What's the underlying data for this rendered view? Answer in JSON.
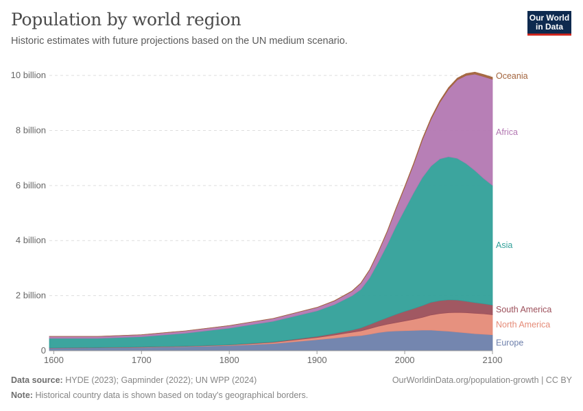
{
  "header": {
    "title": "Population by world region",
    "subtitle": "Historic estimates with future projections based on the UN medium scenario.",
    "logo_line1": "Our World",
    "logo_line2": "in Data"
  },
  "footer": {
    "source_label": "Data source:",
    "source_text": "HYDE (2023); Gapminder (2022); UN WPP (2024)",
    "note_label": "Note:",
    "note_text": "Historical country data is shown based on today's geographical borders.",
    "credit": "OurWorldinData.org/population-growth | CC BY"
  },
  "chart_data": {
    "type": "area",
    "stacked": true,
    "title": "Population by world region",
    "xlabel": "",
    "ylabel": "",
    "xlim": [
      1595,
      2100
    ],
    "ylim": [
      0,
      10.5
    ],
    "y_ticks": [
      0,
      2,
      4,
      6,
      8,
      10
    ],
    "y_tick_labels": [
      "0",
      "2 billion",
      "4 billion",
      "6 billion",
      "8 billion",
      "10 billion"
    ],
    "x_ticks": [
      1600,
      1700,
      1800,
      1900,
      2000,
      2100
    ],
    "x_tick_labels": [
      "1600",
      "1700",
      "1800",
      "1900",
      "2000",
      "2100"
    ],
    "grid": true,
    "legend": "inline-right",
    "x": [
      1595,
      1650,
      1700,
      1750,
      1800,
      1850,
      1900,
      1920,
      1940,
      1950,
      1960,
      1970,
      1980,
      1990,
      2000,
      2010,
      2020,
      2030,
      2040,
      2050,
      2060,
      2070,
      2080,
      2090,
      2100
    ],
    "series": [
      {
        "name": "Europe",
        "color": "#6d7fab",
        "values": [
          0.1,
          0.11,
          0.12,
          0.15,
          0.19,
          0.26,
          0.4,
          0.46,
          0.53,
          0.55,
          0.6,
          0.66,
          0.7,
          0.72,
          0.73,
          0.74,
          0.75,
          0.75,
          0.73,
          0.71,
          0.68,
          0.65,
          0.62,
          0.6,
          0.58
        ]
      },
      {
        "name": "North America",
        "color": "#e58b78",
        "values": [
          0.0,
          0.0,
          0.01,
          0.01,
          0.02,
          0.04,
          0.08,
          0.11,
          0.14,
          0.17,
          0.2,
          0.23,
          0.26,
          0.3,
          0.35,
          0.4,
          0.46,
          0.55,
          0.62,
          0.67,
          0.71,
          0.73,
          0.74,
          0.74,
          0.73
        ]
      },
      {
        "name": "South America",
        "color": "#9c4f5a",
        "values": [
          0.01,
          0.01,
          0.01,
          0.01,
          0.01,
          0.02,
          0.04,
          0.06,
          0.08,
          0.11,
          0.15,
          0.19,
          0.24,
          0.3,
          0.35,
          0.39,
          0.43,
          0.46,
          0.47,
          0.47,
          0.45,
          0.42,
          0.39,
          0.37,
          0.35
        ]
      },
      {
        "name": "Asia",
        "color": "#31a099",
        "values": [
          0.34,
          0.33,
          0.37,
          0.47,
          0.6,
          0.75,
          0.93,
          1.05,
          1.25,
          1.4,
          1.7,
          2.15,
          2.65,
          3.2,
          3.7,
          4.2,
          4.65,
          4.95,
          5.15,
          5.2,
          5.15,
          5.0,
          4.8,
          4.55,
          4.35
        ]
      },
      {
        "name": "Africa",
        "color": "#b378b2",
        "values": [
          0.07,
          0.07,
          0.07,
          0.08,
          0.09,
          0.1,
          0.12,
          0.13,
          0.16,
          0.22,
          0.28,
          0.36,
          0.47,
          0.63,
          0.81,
          1.03,
          1.36,
          1.7,
          2.05,
          2.45,
          2.85,
          3.2,
          3.5,
          3.7,
          3.85
        ]
      },
      {
        "name": "Oceania",
        "color": "#a2633c",
        "values": [
          0.002,
          0.002,
          0.002,
          0.002,
          0.002,
          0.002,
          0.006,
          0.009,
          0.011,
          0.013,
          0.016,
          0.02,
          0.023,
          0.027,
          0.031,
          0.037,
          0.045,
          0.05,
          0.055,
          0.06,
          0.063,
          0.066,
          0.069,
          0.071,
          0.072
        ]
      }
    ],
    "end_labels": [
      "Oceania",
      "Africa",
      "Asia",
      "South America",
      "North America",
      "Europe"
    ]
  }
}
